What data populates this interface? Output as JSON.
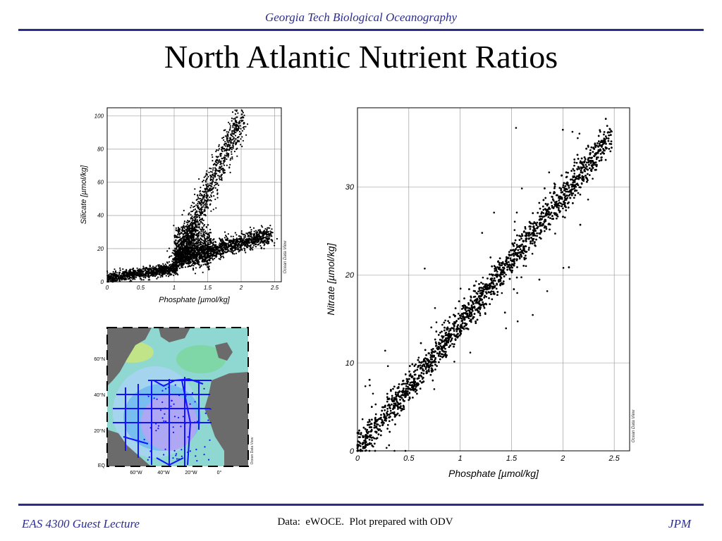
{
  "colors": {
    "accent": "#2b2d8c",
    "points": "#000000",
    "station_track": "#1212ff"
  },
  "header": {
    "text": "Georgia Tech Biological Oceanography"
  },
  "title": "North Atlantic Nutrient Ratios",
  "footer": {
    "left": "EAS 4300 Guest Lecture",
    "center": "Data:  eWOCE.  Plot prepared with ODV",
    "right": "JPM"
  },
  "chart_data": [
    {
      "type": "scatter",
      "title": "",
      "xlabel": "Phosphate [µmol/kg]",
      "ylabel": "Silicate [µmol/kg]",
      "xlim": [
        0,
        2.6
      ],
      "ylim": [
        0,
        105
      ],
      "xticks": [
        0,
        0.5,
        1,
        1.5,
        2,
        2.5
      ],
      "xtick_labels": [
        "0",
        "0.5",
        "1",
        "1.5",
        "2",
        "2.5"
      ],
      "yticks": [
        0,
        20,
        40,
        60,
        80,
        100
      ],
      "ytick_labels": [
        "0",
        "20",
        "40",
        "60",
        "80",
        "100"
      ],
      "grid": true,
      "watermark": "Ocean Data View",
      "point_groups": [
        {
          "x_range": [
            0,
            1.0
          ],
          "y_range": [
            0,
            10
          ]
        },
        {
          "x_range": [
            1.0,
            2.0
          ],
          "y_range": [
            10,
            105
          ]
        },
        {
          "x_range": [
            1.0,
            2.45
          ],
          "y_range": [
            10,
            32
          ]
        }
      ]
    },
    {
      "type": "scatter",
      "title": "",
      "xlabel": "Phosphate [µmol/kg]",
      "ylabel": "Nitrate [µmol/kg]",
      "xlim": [
        0,
        2.65
      ],
      "ylim": [
        0,
        39
      ],
      "xticks": [
        0,
        0.5,
        1,
        1.5,
        2,
        2.5
      ],
      "xtick_labels": [
        "0",
        "0.5",
        "1",
        "1.5",
        "2",
        "2.5"
      ],
      "yticks": [
        0,
        10,
        20,
        30
      ],
      "ytick_labels": [
        "0",
        "10",
        "20",
        "30"
      ],
      "grid": true,
      "watermark": "Ocean Data View",
      "trend": {
        "x": [
          0,
          2.45
        ],
        "y": [
          0,
          35.5
        ]
      }
    },
    {
      "type": "map",
      "title": "",
      "xtick_labels": [
        "60°W",
        "40°W",
        "20°W",
        "0°"
      ],
      "ytick_labels": [
        "EQ",
        "20°N",
        "40°N",
        "60°N"
      ],
      "watermark": "Ocean Data View"
    }
  ]
}
